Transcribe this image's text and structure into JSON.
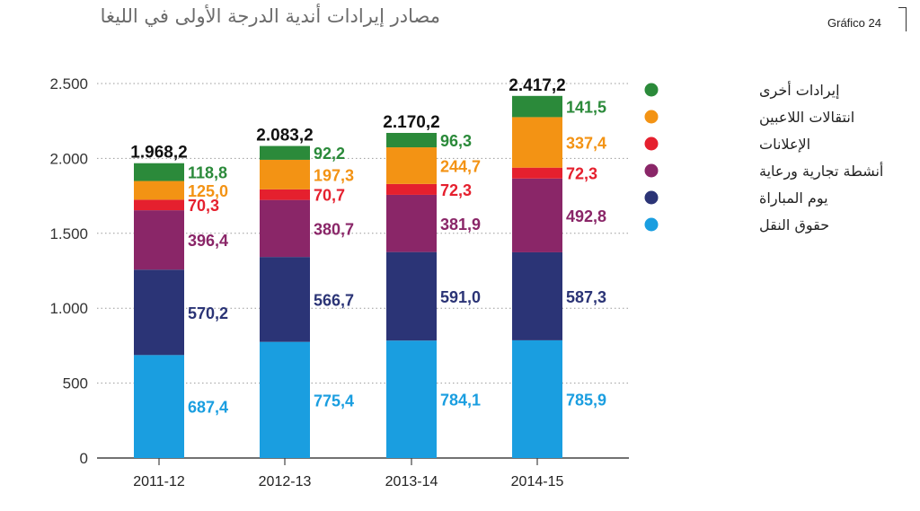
{
  "title": "مصادر إيرادات أندية الدرجة الأولى في الليغا",
  "figure_label": "Gráfico 24",
  "chart_data": {
    "type": "bar",
    "stacked": true,
    "categories": [
      "2011-12",
      "2012-13",
      "2013-14",
      "2014-15"
    ],
    "series": [
      {
        "name": "حقوق النقل",
        "color": "#1a9ee0",
        "values": [
          687.4,
          775.4,
          784.1,
          785.9
        ],
        "labels": [
          "687,4",
          "775,4",
          "784,1",
          "785,9"
        ]
      },
      {
        "name": "يوم المباراة",
        "color": "#2b3476",
        "values": [
          570.2,
          566.7,
          591.0,
          587.3
        ],
        "labels": [
          "570,2",
          "566,7",
          "591,0",
          "587,3"
        ]
      },
      {
        "name": "أنشطة تجارية ورعاية",
        "color": "#8a2668",
        "values": [
          396.4,
          380.7,
          381.9,
          492.8
        ],
        "labels": [
          "396,4",
          "380,7",
          "381,9",
          "492,8"
        ]
      },
      {
        "name": "الإعلانات",
        "color": "#e5202e",
        "values": [
          70.3,
          70.7,
          72.3,
          72.3
        ],
        "labels": [
          "70,3",
          "70,7",
          "72,3",
          "72,3"
        ]
      },
      {
        "name": "انتقالات اللاعبين",
        "color": "#f39314",
        "values": [
          125.0,
          197.3,
          244.7,
          337.4
        ],
        "labels": [
          "125,0",
          "197,3",
          "244,7",
          "337,4"
        ]
      },
      {
        "name": "إيرادات أخرى",
        "color": "#2b8a3a",
        "values": [
          118.8,
          92.2,
          96.3,
          141.5
        ],
        "labels": [
          "118,8",
          "92,2",
          "96,3",
          "141,5"
        ]
      }
    ],
    "totals": [
      1968.2,
      2083.2,
      2170.2,
      2417.2
    ],
    "total_labels": [
      "1.968,2",
      "2.083,2",
      "2.170,2",
      "2.417,2"
    ],
    "ylim": [
      0,
      2500
    ],
    "yticks": [
      0,
      500,
      1000,
      1500,
      2000,
      2500
    ],
    "ytick_labels": [
      "0",
      "500",
      "1.000",
      "1.500",
      "2.000",
      "2.500"
    ],
    "grid": "dotted horizontal",
    "legend_position": "right",
    "legend_order": [
      "إيرادات أخرى",
      "انتقالات اللاعبين",
      "الإعلانات",
      "أنشطة تجارية ورعاية",
      "يوم المباراة",
      "حقوق النقل"
    ]
  }
}
